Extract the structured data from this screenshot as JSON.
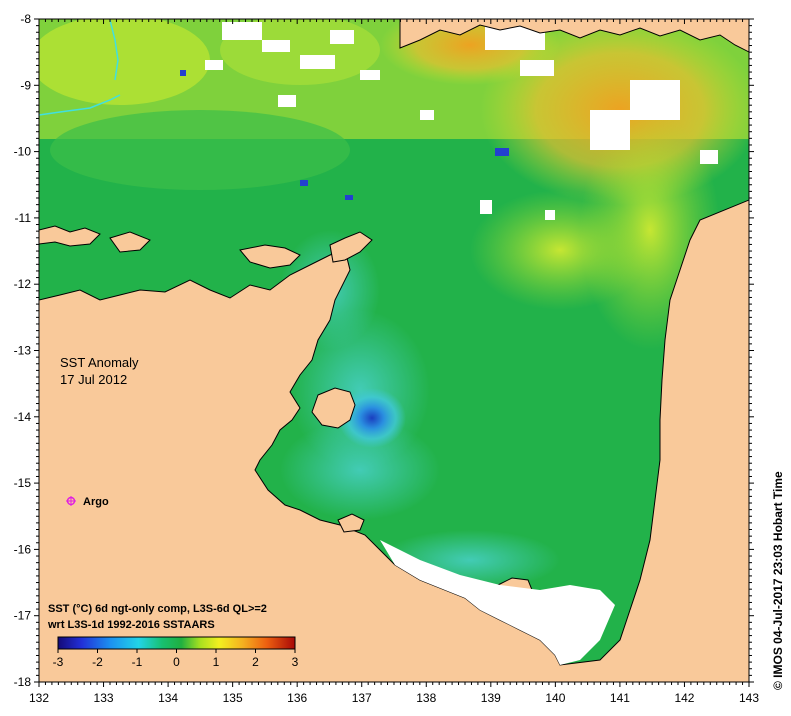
{
  "map": {
    "title_line1": "SST Anomaly",
    "title_line2": "17 Jul 2012",
    "argo_label": "Argo",
    "caption_line1": "SST (°C) 6d ngt-only comp, L3S-6d QL>=2",
    "caption_line2": "wrt L3S-1d 1992-2016 SSTAARS",
    "credit": "© IMOS 04-Jul-2017 23:03 Hobart Time"
  },
  "axes": {
    "x_ticks": [
      "132",
      "133",
      "134",
      "135",
      "136",
      "137",
      "138",
      "139",
      "140",
      "141",
      "142",
      "143"
    ],
    "y_ticks": [
      "-8",
      "-9",
      "-10",
      "-11",
      "-12",
      "-13",
      "-14",
      "-15",
      "-16",
      "-17",
      "-18"
    ]
  },
  "colorbar": {
    "ticks": [
      "-3",
      "-2",
      "-1",
      "0",
      "1",
      "2",
      "3"
    ],
    "range": [
      -3,
      3
    ]
  },
  "colors": {
    "land": "#f9c99a",
    "ocean_base": "#22b24a",
    "warm": "#f0a623",
    "cold": "#1e6fd9",
    "argo_marker": "#e020e0"
  }
}
